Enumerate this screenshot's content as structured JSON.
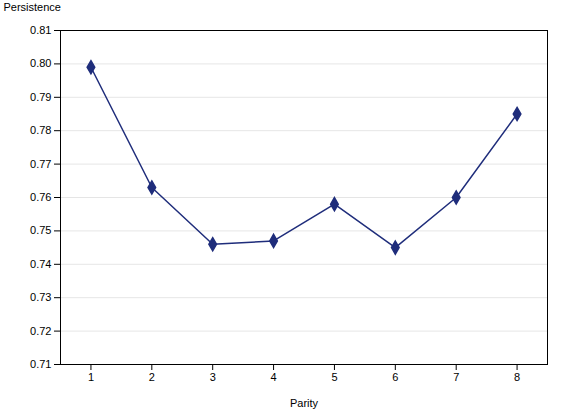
{
  "chart_data": {
    "type": "line",
    "x": [
      1,
      2,
      3,
      4,
      5,
      6,
      7,
      8
    ],
    "values": [
      0.799,
      0.763,
      0.746,
      0.747,
      0.758,
      0.745,
      0.76,
      0.785
    ],
    "color": "#1F2D7B",
    "marker": "diamond",
    "xlabel": "Parity",
    "ylabel": "Persistence",
    "xlim": [
      0.5,
      8.5
    ],
    "ylim": [
      0.71,
      0.81
    ],
    "xticks": [
      1,
      2,
      3,
      4,
      5,
      6,
      7,
      8
    ],
    "yticks": [
      0.71,
      0.72,
      0.73,
      0.74,
      0.75,
      0.76,
      0.77,
      0.78,
      0.79,
      {
        "value": 0.8,
        "label": "0.80"
      },
      0.81
    ],
    "grid": true
  }
}
